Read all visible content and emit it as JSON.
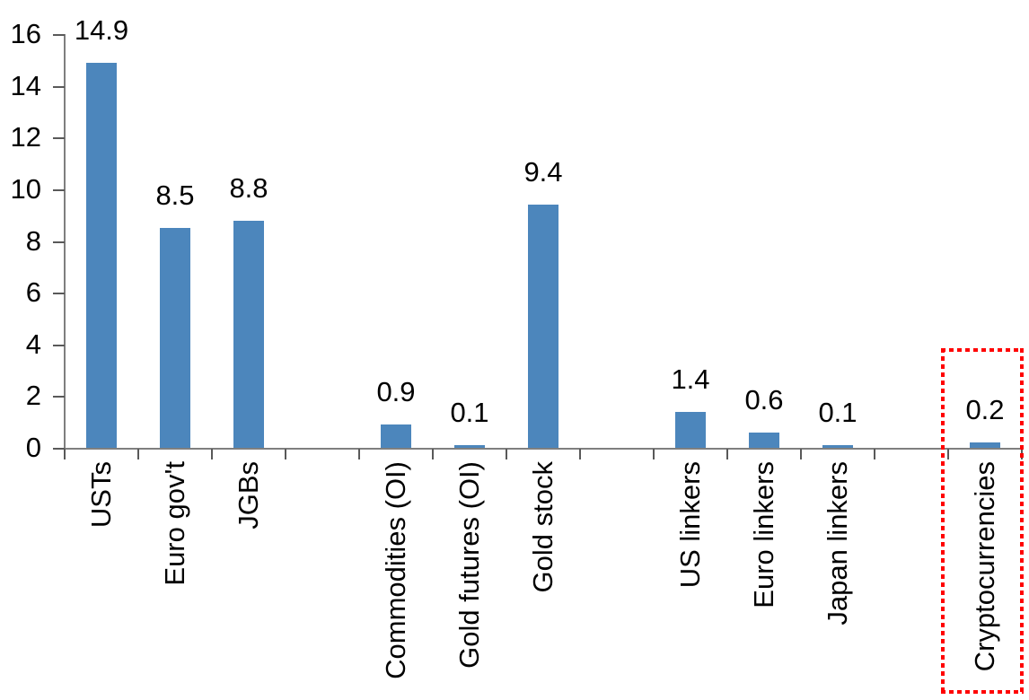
{
  "chart_data": {
    "type": "bar",
    "title": "",
    "xlabel": "",
    "ylabel": "",
    "categories": [
      "USTs",
      "Euro gov't",
      "JGBs",
      "",
      "Commodities (OI)",
      "Gold futures (OI)",
      "Gold stock",
      "",
      "US linkers",
      "Euro linkers",
      "Japan linkers",
      "",
      "Cryptocurrencies"
    ],
    "values": [
      14.9,
      8.5,
      8.8,
      null,
      0.9,
      0.1,
      9.4,
      null,
      1.4,
      0.6,
      0.1,
      null,
      0.2
    ],
    "data_labels": [
      "14.9",
      "8.5",
      "8.8",
      "",
      "0.9",
      "0.1",
      "9.4",
      "",
      "1.4",
      "0.6",
      "0.1",
      "",
      "0.2"
    ],
    "ylim": [
      0,
      16
    ],
    "ytick_step": 2,
    "ytick_labels": [
      "0",
      "2",
      "4",
      "6",
      "8",
      "10",
      "12",
      "14",
      "16"
    ],
    "grid": false,
    "legend": "none",
    "bar_color": "#4c86bc",
    "axis_color": "#7f7f7f",
    "tick_color": "#595959",
    "text_color": "#000000",
    "highlight": {
      "category": "Cryptocurrencies",
      "shape": "dotted-rectangle",
      "color": "#ff0000"
    }
  }
}
